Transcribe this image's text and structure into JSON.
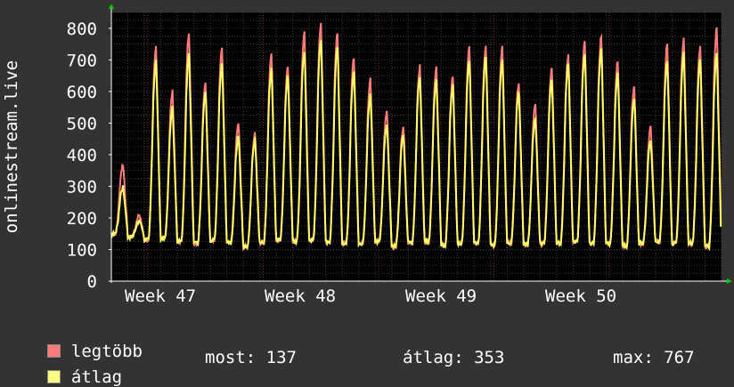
{
  "chart_data": {
    "type": "line",
    "ylabel": "onlinestream.live",
    "ylim": [
      0,
      850
    ],
    "yticks": [
      0,
      100,
      200,
      300,
      400,
      500,
      600,
      700,
      800
    ],
    "xticks": [
      "Week 47",
      "Week 48",
      "Week 49",
      "Week 50"
    ],
    "grid": true,
    "daily_peaks_legtobb": [
      370,
      210,
      740,
      600,
      790,
      630,
      740,
      500,
      470,
      720,
      680,
      790,
      820,
      790,
      710,
      640,
      540,
      490,
      680,
      680,
      650,
      740,
      750,
      740,
      630,
      560,
      680,
      720,
      760,
      780,
      700,
      620,
      490,
      750,
      770,
      740,
      800
    ],
    "daily_peaks_atlag": [
      300,
      190,
      700,
      550,
      720,
      600,
      690,
      460,
      450,
      670,
      650,
      730,
      770,
      740,
      670,
      590,
      500,
      460,
      650,
      640,
      620,
      700,
      710,
      700,
      600,
      520,
      640,
      690,
      720,
      740,
      660,
      580,
      450,
      700,
      720,
      700,
      720
    ],
    "daily_troughs": [
      150,
      140,
      130,
      135,
      125,
      120,
      130,
      120,
      110,
      120,
      130,
      125,
      130,
      125,
      120,
      120,
      125,
      110,
      120,
      125,
      115,
      120,
      120,
      115,
      120,
      115,
      120,
      120,
      125,
      120,
      120,
      110,
      120,
      125,
      120,
      120,
      110
    ],
    "series": [
      {
        "name": "legtöbb",
        "color": "#ff7a7a"
      },
      {
        "name": "átlag",
        "color": "#ffff66"
      }
    ]
  },
  "legend": {
    "items": [
      {
        "label": "legtöbb",
        "color": "#ff7a7a"
      },
      {
        "label": "átlag",
        "color": "#ffff80"
      }
    ],
    "stats": {
      "most": "most: 137",
      "atlag": "átlag: 353",
      "max": "max: 767"
    }
  },
  "colors": {
    "background": "#333333",
    "plot_background": "#000000",
    "grid": "#3a3a3a",
    "vgrid_major": "#7a2222",
    "axis": "#ffffff",
    "arrow": "#00cc00"
  }
}
